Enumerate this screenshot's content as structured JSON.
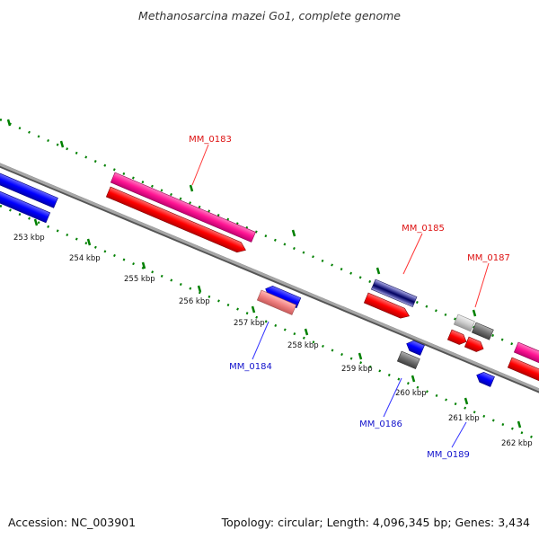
{
  "title": "Methanosarcina mazei Go1, complete genome",
  "footer": {
    "accession": "Accession: NC_003901",
    "summary": "Topology: circular; Length: 4,096,345 bp; Genes: 3,434"
  },
  "ticks": [
    "253 kbp",
    "254 kbp",
    "255 kbp",
    "256 kbp",
    "257 kbp",
    "258 kbp",
    "259 kbp",
    "260 kbp",
    "261 kbp",
    "262 kbp"
  ],
  "gene_labels": {
    "forward": [
      "MM_0183",
      "MM_0185",
      "MM_0187"
    ],
    "reverse": [
      "MM_0184",
      "MM_0186",
      "MM_0189"
    ]
  },
  "colors": {
    "forward_label": "#dd1111",
    "reverse_label": "#1111cc",
    "backbone": "#808080",
    "tick_dots": "#008000",
    "forward_gene": "#ff0000",
    "reverse_gene": "#0000ff",
    "highlight_gene": "#ff1493"
  }
}
